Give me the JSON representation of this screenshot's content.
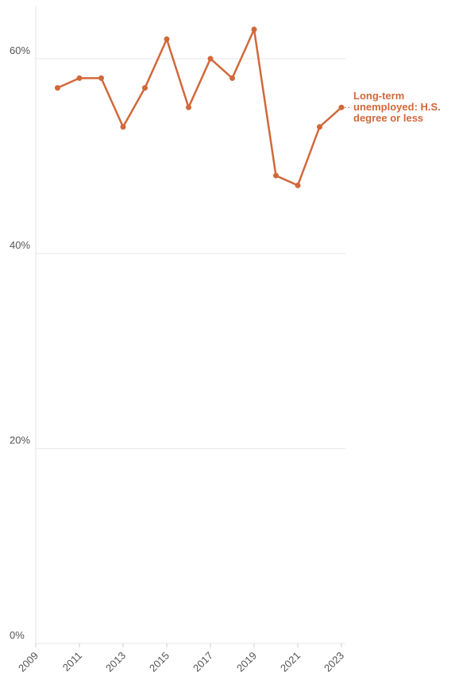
{
  "chart_data": {
    "type": "line",
    "x": [
      2010,
      2011,
      2012,
      2013,
      2014,
      2015,
      2016,
      2017,
      2018,
      2019,
      2020,
      2021,
      2022,
      2023
    ],
    "series": [
      {
        "name": "Long-term unemployed: H.S. degree or less",
        "color": "#d2683a",
        "values": [
          57,
          58,
          58,
          53,
          57,
          62,
          55,
          60,
          58,
          63,
          48,
          47,
          53,
          55
        ]
      }
    ],
    "xlim": [
      2009,
      2023
    ],
    "xticks": [
      2009,
      2011,
      2013,
      2015,
      2017,
      2019,
      2021,
      2023
    ],
    "ylim": [
      0,
      65
    ],
    "yticks": [
      {
        "value": 0,
        "label": "0%"
      },
      {
        "value": 20,
        "label": "20%"
      },
      {
        "value": 40,
        "label": "40%"
      },
      {
        "value": 60,
        "label": "60%"
      }
    ],
    "grid": true
  }
}
